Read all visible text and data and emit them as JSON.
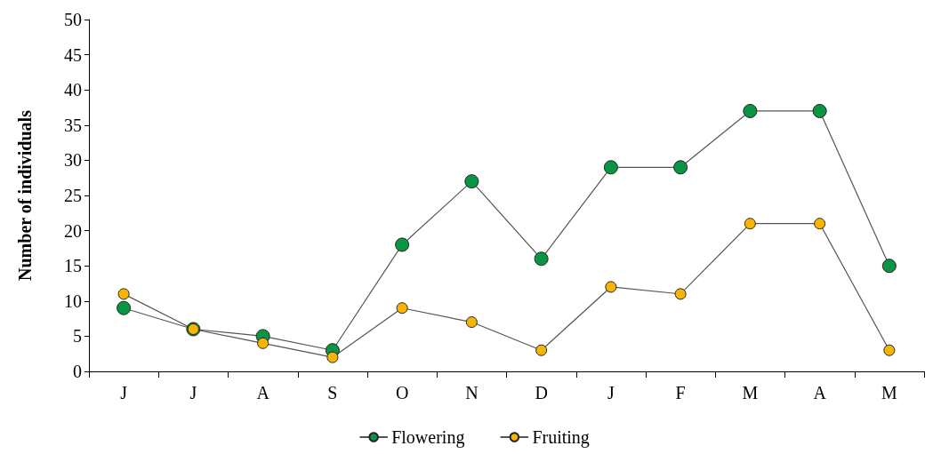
{
  "chart_data": {
    "type": "line",
    "ylabel": "Number of individuals",
    "categories": [
      "J",
      "J",
      "A",
      "S",
      "O",
      "N",
      "D",
      "J",
      "F",
      "M",
      "A",
      "M"
    ],
    "series": [
      {
        "name": "Flowering",
        "color": "#0b9444",
        "values": [
          9,
          6,
          5,
          3,
          18,
          27,
          16,
          29,
          29,
          37,
          37,
          15
        ]
      },
      {
        "name": "Fruiting",
        "color": "#f7b500",
        "values": [
          11,
          6,
          4,
          2,
          9,
          7,
          3,
          12,
          11,
          21,
          21,
          3
        ]
      }
    ],
    "ylim": [
      0,
      50
    ],
    "yticks": [
      0,
      5,
      10,
      15,
      20,
      25,
      30,
      35,
      40,
      45,
      50
    ],
    "grid": false,
    "legend": "bottom",
    "marker": "circle",
    "line_style": "solid"
  }
}
